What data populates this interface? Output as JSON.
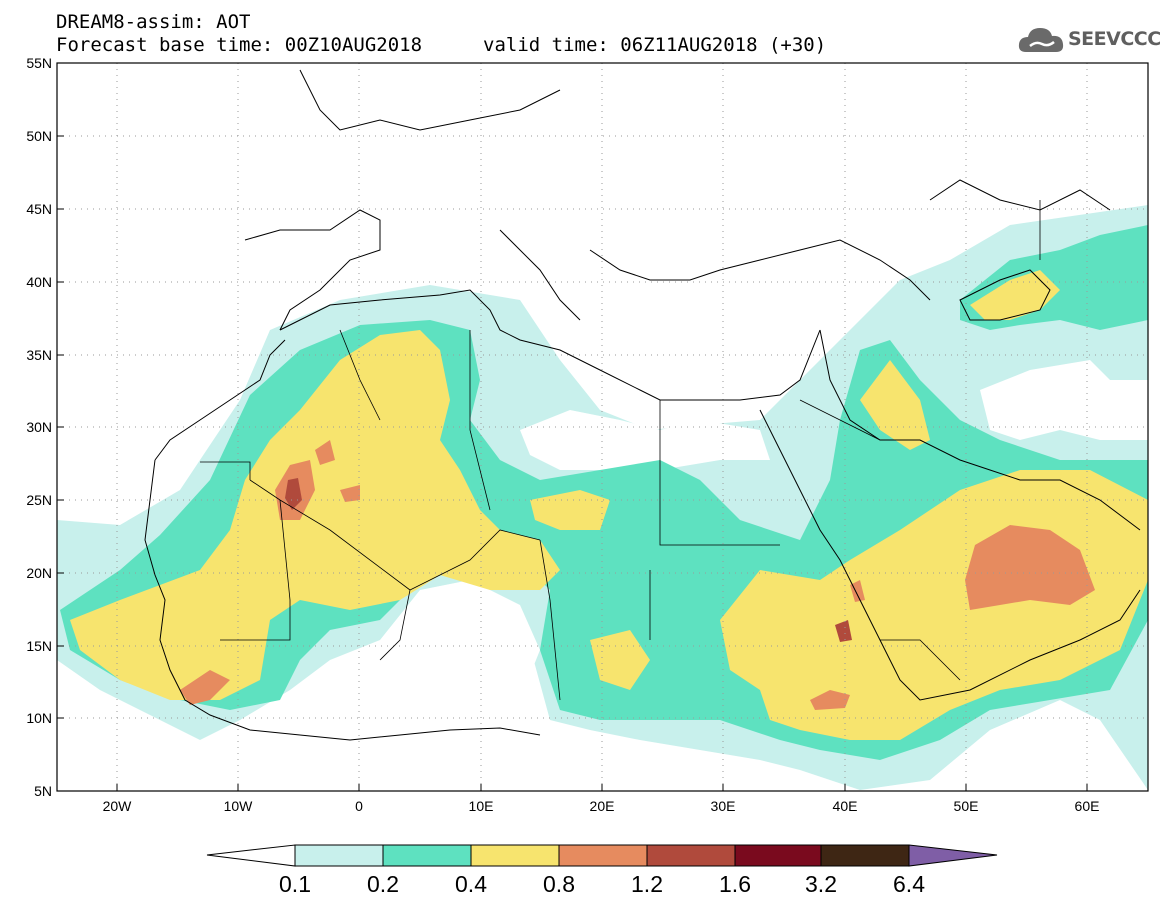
{
  "header": {
    "product": "DREAM8-assim: AOT",
    "base_time": "Forecast base time: 00Z10AUG2018",
    "valid_time": "valid time: 06Z11AUG2018 (+30)"
  },
  "logo": {
    "text": "SEEVCCC",
    "icon": "cloud-logo-icon"
  },
  "map": {
    "lat_labels": [
      "55N",
      "50N",
      "45N",
      "40N",
      "35N",
      "30N",
      "25N",
      "20N",
      "15N",
      "10N",
      "5N"
    ],
    "lon_labels": [
      "20W",
      "10W",
      "0",
      "10E",
      "20E",
      "30E",
      "40E",
      "50E",
      "60E"
    ],
    "lat_range": [
      5,
      55
    ],
    "lon_range": [
      -25,
      65
    ],
    "grid": "dotted"
  },
  "colorbar": {
    "labels": [
      "0.1",
      "0.2",
      "0.4",
      "0.8",
      "1.2",
      "1.6",
      "3.2",
      "6.4"
    ],
    "colors": [
      "#ffffff",
      "#c8f0ec",
      "#5ee1c0",
      "#f7e46e",
      "#e68b5f",
      "#b04a3c",
      "#7a0a1e",
      "#3e2614",
      "#7f5ea6"
    ]
  }
}
